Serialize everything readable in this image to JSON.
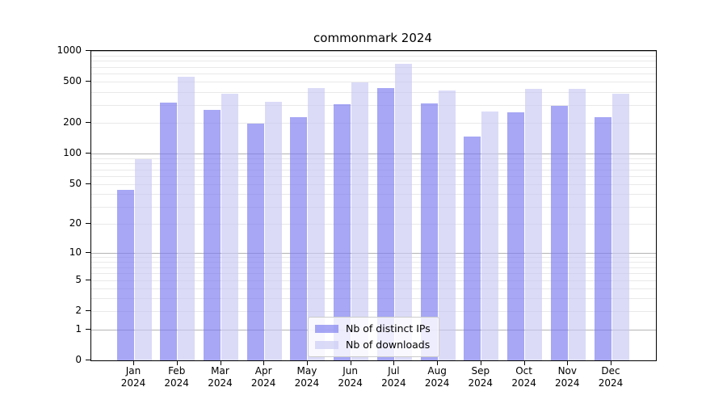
{
  "title": "commonmark 2024",
  "chart_data": {
    "type": "bar",
    "title": "commonmark 2024",
    "categories": [
      "Jan",
      "Feb",
      "Mar",
      "Apr",
      "May",
      "Jun",
      "Jul",
      "Aug",
      "Sep",
      "Oct",
      "Nov",
      "Dec"
    ],
    "category_year": "2024",
    "series": [
      {
        "name": "Nb of distinct IPs",
        "color": "#7878f0",
        "values": [
          44,
          315,
          268,
          195,
          227,
          305,
          435,
          310,
          148,
          253,
          292,
          227
        ]
      },
      {
        "name": "Nb of downloads",
        "color": "#c8c8f5",
        "values": [
          88,
          560,
          385,
          320,
          435,
          495,
          750,
          415,
          258,
          425,
          427,
          385
        ]
      }
    ],
    "bar_opacity": 0.65,
    "yscale": "log1p",
    "ylim": [
      0,
      1000
    ],
    "yticks": [
      0,
      1,
      2,
      5,
      10,
      20,
      50,
      100,
      200,
      500,
      1000
    ],
    "grid": "major+minor",
    "legend_position": "lower center"
  },
  "colors": {
    "grid_major": "#b4b4b4",
    "grid_minor": "#e9e9e9",
    "axis": "#000000",
    "background": "#ffffff",
    "legend_border": "#cccccc"
  }
}
